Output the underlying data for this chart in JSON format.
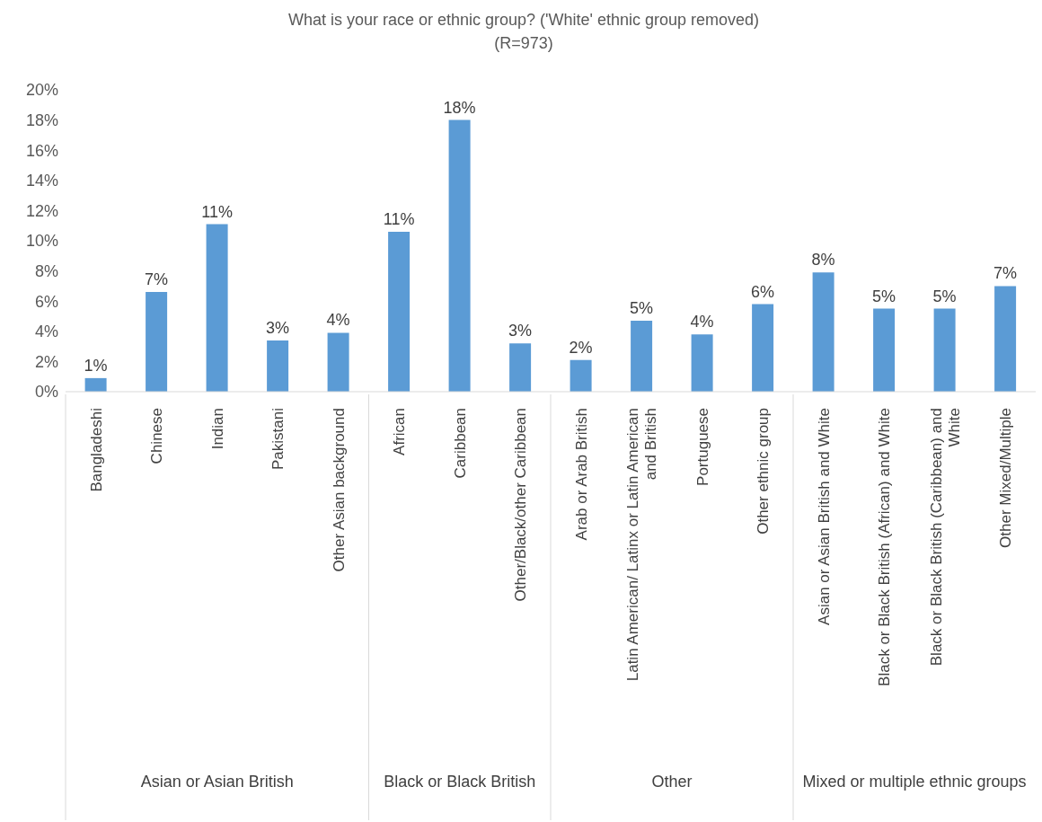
{
  "chart_data": {
    "type": "bar",
    "title": "What is your race or ethnic group? ('White' ethnic group removed)",
    "subtitle": "(R=973)",
    "categories": [
      "Bangladeshi",
      "Chinese",
      "Indian",
      "Pakistani",
      "Other Asian background",
      "African",
      "Caribbean",
      "Other/Black/other Caribbean",
      "Arab or Arab British",
      "Latin American/ Latinx or Latin American and British",
      "Portuguese",
      "Other ethnic group",
      "Asian or Asian British and White",
      "Black or Black British (African) and White",
      "Black or Black British (Caribbean) and White",
      "Other Mixed/Multiple"
    ],
    "values": [
      0.9,
      6.6,
      11.1,
      3.4,
      3.9,
      10.6,
      18.0,
      3.2,
      2.1,
      4.7,
      3.8,
      5.8,
      7.9,
      5.5,
      5.5,
      7.0
    ],
    "value_labels": [
      "1%",
      "7%",
      "11%",
      "3%",
      "4%",
      "11%",
      "18%",
      "3%",
      "2%",
      "5%",
      "4%",
      "6%",
      "8%",
      "5%",
      "5%",
      "7%"
    ],
    "color": "#5b9bd5",
    "ylim": [
      0,
      20
    ],
    "yticks": [
      {
        "value": 0,
        "label": "0%"
      },
      {
        "value": 2,
        "label": "2%"
      },
      {
        "value": 4,
        "label": "4%"
      },
      {
        "value": 6,
        "label": "6%"
      },
      {
        "value": 8,
        "label": "8%"
      },
      {
        "value": 10,
        "label": "10%"
      },
      {
        "value": 12,
        "label": "12%"
      },
      {
        "value": 14,
        "label": "14%"
      },
      {
        "value": 16,
        "label": "16%"
      },
      {
        "value": 18,
        "label": "18%"
      },
      {
        "value": 20,
        "label": "20%"
      }
    ],
    "annotations": [
      "Asian or Asian British",
      "Black or Black British",
      "Other",
      "Mixed or multiple ethnic groups"
    ]
  }
}
